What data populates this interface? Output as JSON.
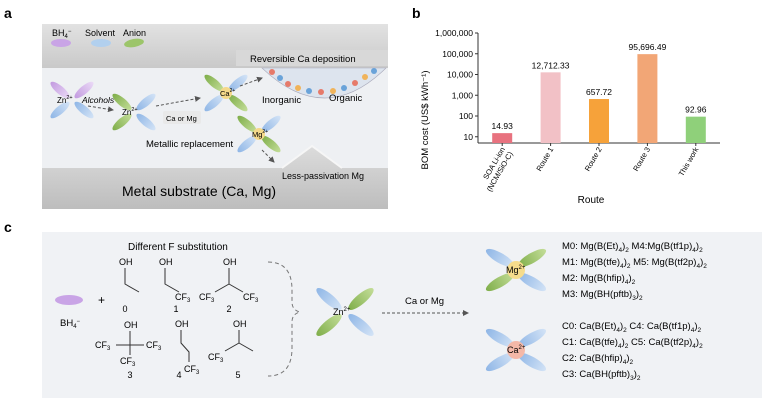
{
  "panel_a": {
    "letter": "a",
    "legend": {
      "bh4": "BH",
      "bh4_sub": "4",
      "bh4_sup": "−",
      "solvent": "Solvent",
      "anion": "Anion"
    },
    "top_label": "Reversible Ca deposition",
    "zn": "Zn",
    "zn_sup": "2+",
    "alcohols": "Alcohols",
    "ca": "Ca",
    "ca_sup": "2+",
    "mg": "Mg",
    "mg_sup": "2+",
    "ca_or_mg": "Ca or Mg",
    "metallic_replacement": "Metallic replacement",
    "inorganic": "Inorganic",
    "organic": "Organic",
    "less_passivation": "Less-passivation Mg",
    "substrate": "Metal substrate (Ca, Mg)"
  },
  "panel_b": {
    "letter": "b",
    "xlabel": "Route",
    "ylabel": "BOM cost (US$ kWh⁻¹)",
    "colors": [
      "#e8727f",
      "#f2c1c6",
      "#f6a23a",
      "#f2a676",
      "#8fd07a"
    ]
  },
  "chart_data": {
    "type": "bar",
    "categories": [
      "SOA Li-ion (NCM/SiO-C)",
      "Route 1",
      "Route 2",
      "Route 3",
      "This work"
    ],
    "tick_labels": [
      [
        "SOA Li-ion",
        "(NCM/SiO-C)"
      ],
      [
        "Route 1"
      ],
      [
        "Route 2"
      ],
      [
        "Route 3"
      ],
      [
        "This work"
      ]
    ],
    "values": [
      14.93,
      12712.33,
      657.72,
      95696.49,
      92.96
    ],
    "value_labels": [
      "14.93",
      "12,712.33",
      "657.72",
      "95,696.49",
      "92.96"
    ],
    "xlabel": "Route",
    "ylabel": "BOM cost (US$ kWh⁻¹)",
    "yscale": "log",
    "ylim": [
      5,
      1000000
    ],
    "yticks": [
      10,
      100,
      1000,
      10000,
      100000,
      1000000
    ],
    "ytick_labels": [
      "10",
      "100",
      "1,000",
      "10,000",
      "100,000",
      "1,000,000"
    ],
    "grid": false,
    "legend": "none"
  },
  "panel_c": {
    "letter": "c",
    "different_f": "Different F substitution",
    "bh4": "BH",
    "bh4_sub": "4",
    "bh4_sup": "−",
    "plus": "+",
    "oh": "OH",
    "cf3": "CF",
    "cf3_sub": "3",
    "numbers": [
      "0",
      "1",
      "2",
      "3",
      "4",
      "5"
    ],
    "zn": "Zn",
    "zn_sup": "2+",
    "ca_or_mg": "Ca or Mg",
    "mg": "Mg",
    "mg_sup": "2+",
    "ca": "Ca",
    "ca_sup": "2+",
    "mg_formulas": [
      [
        [
          "M0: Mg(B(Et)",
          ""
        ],
        [
          "4",
          "sub"
        ],
        [
          ")",
          ""
        ],
        [
          "2",
          "sub"
        ],
        [
          " M4:Mg(B(tf1p)",
          ""
        ],
        [
          "4",
          "sub"
        ],
        [
          ")",
          ""
        ],
        [
          "2",
          "sub"
        ]
      ],
      [
        [
          "M1: Mg(B(tfe)",
          ""
        ],
        [
          "4",
          "sub"
        ],
        [
          ")",
          ""
        ],
        [
          "2",
          "sub"
        ],
        [
          " M5: Mg(B(tf2p)",
          ""
        ],
        [
          "4",
          "sub"
        ],
        [
          ")",
          ""
        ],
        [
          "2",
          "sub"
        ]
      ],
      [
        [
          "M2: Mg(B(hfip)",
          ""
        ],
        [
          "4",
          "sub"
        ],
        [
          ")",
          ""
        ],
        [
          "2",
          "sub"
        ]
      ],
      [
        [
          "M3: Mg(BH(pftb)",
          ""
        ],
        [
          "3",
          "sub"
        ],
        [
          ")",
          ""
        ],
        [
          "2",
          "sub"
        ]
      ]
    ],
    "ca_formulas": [
      [
        [
          "C0: Ca(B(Et)",
          ""
        ],
        [
          "4",
          "sub"
        ],
        [
          ")",
          ""
        ],
        [
          "2",
          "sub"
        ],
        [
          " C4: Ca(B(tf1p)",
          ""
        ],
        [
          "4",
          "sub"
        ],
        [
          ")",
          ""
        ],
        [
          "2",
          "sub"
        ]
      ],
      [
        [
          "C1: Ca(B(tfe)",
          ""
        ],
        [
          "4",
          "sub"
        ],
        [
          ")",
          ""
        ],
        [
          "2",
          "sub"
        ],
        [
          " C5: Ca(B(tf2p)",
          ""
        ],
        [
          "4",
          "sub"
        ],
        [
          ")",
          ""
        ],
        [
          "2",
          "sub"
        ]
      ],
      [
        [
          "C2: Ca(B(hfip)",
          ""
        ],
        [
          "4",
          "sub"
        ],
        [
          ")",
          ""
        ],
        [
          "2",
          "sub"
        ]
      ],
      [
        [
          "C3: Ca(BH(pftb)",
          ""
        ],
        [
          "3",
          "sub"
        ],
        [
          ")",
          ""
        ],
        [
          "2",
          "sub"
        ]
      ]
    ]
  }
}
